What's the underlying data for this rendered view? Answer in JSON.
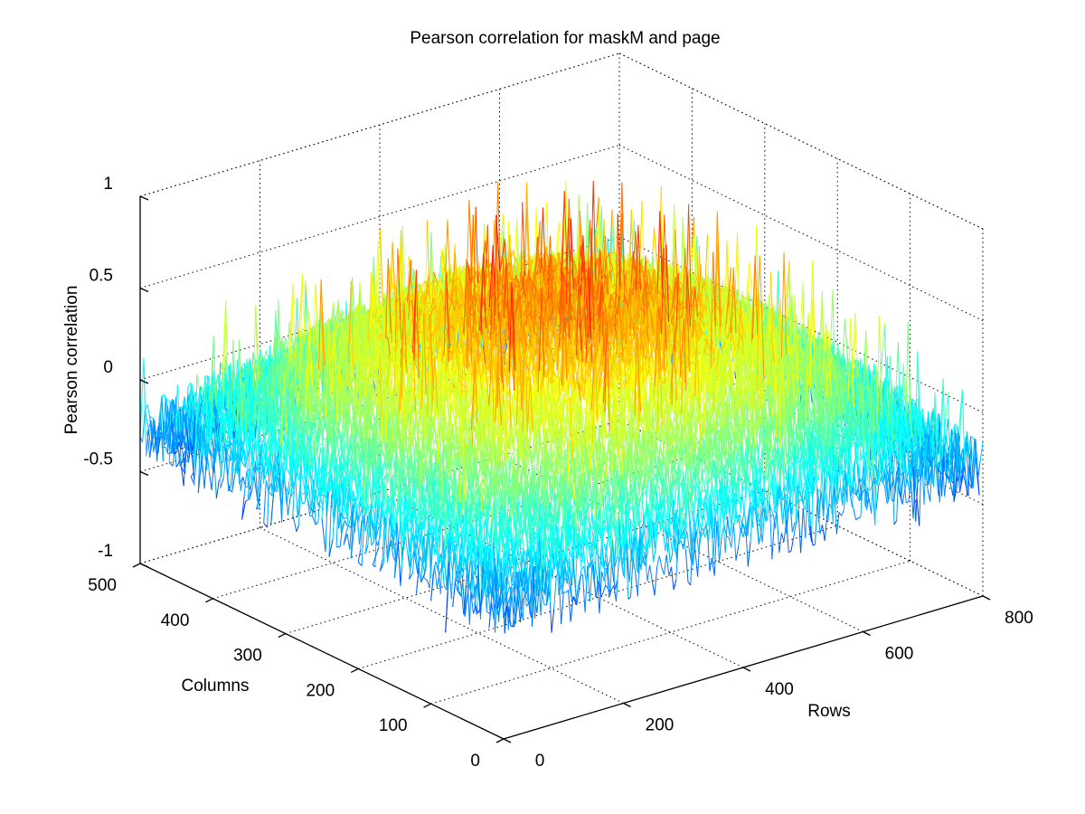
{
  "chart_data": {
    "type": "surface",
    "title": "Pearson correlation for maskM and page",
    "xlabel": "Rows",
    "ylabel": "Columns",
    "zlabel": "Pearson correlation",
    "xlim": [
      0,
      800
    ],
    "ylim": [
      0,
      500
    ],
    "zlim": [
      -1,
      1
    ],
    "x_ticks": [
      0,
      200,
      400,
      600,
      800
    ],
    "y_ticks": [
      0,
      100,
      200,
      300,
      400,
      500
    ],
    "z_ticks": [
      -1,
      -0.5,
      0,
      0.5,
      1
    ],
    "x_tick_labels": [
      "0",
      "200",
      "400",
      "600",
      "800"
    ],
    "y_tick_labels": [
      "0",
      "100",
      "200",
      "300",
      "400",
      "500"
    ],
    "z_tick_labels": [
      "-1",
      "-0.5",
      "0",
      "0.5",
      "1"
    ],
    "colormap": "jet",
    "grid": true,
    "data_extent": {
      "rows": [
        0,
        800
      ],
      "columns": [
        0,
        500
      ]
    },
    "surface_profile": {
      "value_at_edges": -0.3,
      "value_at_center": 0.45,
      "peak_max": 0.92,
      "min": -0.75,
      "noise": "high-frequency spiky noise across the whole surface"
    },
    "colors": {
      "axis": "#000000",
      "grid": "#000000",
      "background": "#ffffff"
    }
  }
}
